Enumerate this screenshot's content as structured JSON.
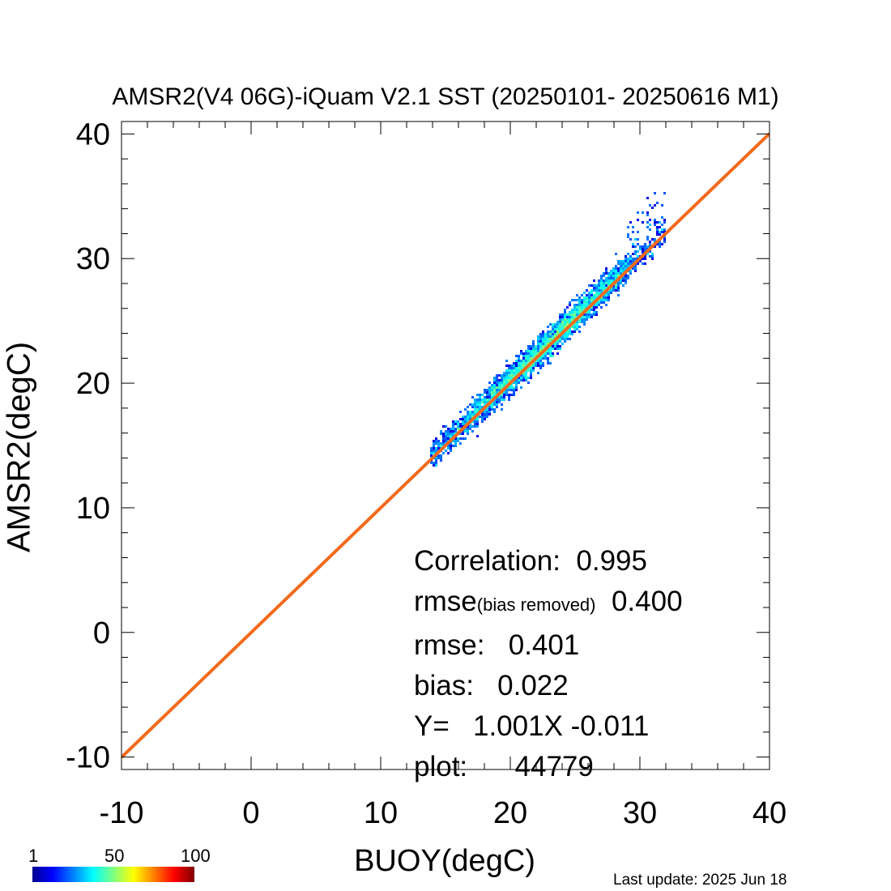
{
  "chart_data": {
    "type": "heatmap",
    "title": "AMSR2(V4 06G)-iQuam V2.1 SST (20250101- 20250616 M1)",
    "xlabel": "BUOY(degC)",
    "ylabel": "AMSR2(degC)",
    "xlim": [
      -10,
      40
    ],
    "ylim": [
      -11,
      41
    ],
    "xticks": [
      "-10",
      "0",
      "10",
      "20",
      "30",
      "40"
    ],
    "yticks": [
      "-10",
      "0",
      "10",
      "20",
      "30",
      "40"
    ],
    "xtick_values": [
      -10,
      0,
      10,
      20,
      30,
      40
    ],
    "ytick_values": [
      -10,
      0,
      10,
      20,
      30,
      40
    ],
    "fit_line": {
      "slope": 1.001,
      "intercept": -0.011,
      "color": "#f26a1b"
    },
    "density_cloud": {
      "x_range": [
        13.8,
        32.0
      ],
      "y_range": [
        13.6,
        34.5
      ],
      "colormap": "jet"
    },
    "colorbar": {
      "ticks": [
        "1",
        "50",
        "100"
      ],
      "values": [
        1,
        50,
        100
      ]
    },
    "stats": {
      "correlation_label": "Correlation:",
      "correlation_value": "0.995",
      "rmse_br_label": "rmse",
      "rmse_br_sub": "(bias removed)",
      "rmse_br_value": "0.400",
      "rmse_label": "rmse:",
      "rmse_value": "0.401",
      "bias_label": "bias:",
      "bias_value": "0.022",
      "fit_label": "Y=",
      "fit_value": "1.001X -0.011",
      "count_label": "plot:",
      "count_value": "44779"
    }
  },
  "footer": "Last update: 2025 Jun 18"
}
